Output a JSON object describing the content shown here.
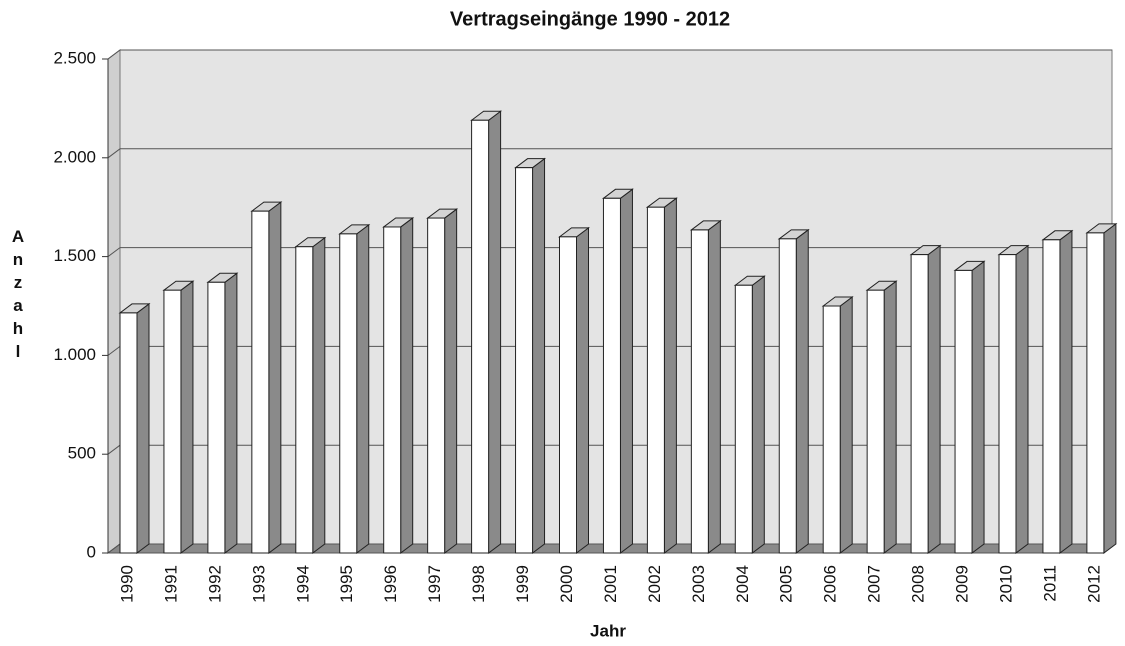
{
  "chart_data": {
    "type": "bar",
    "title": "Vertragseingänge  1990 - 2012",
    "x_label": "Jahr",
    "y_label": "Anzahl",
    "categories": [
      "1990",
      "1991",
      "1992",
      "1993",
      "1994",
      "1995",
      "1996",
      "1997",
      "1998",
      "1999",
      "2000",
      "2001",
      "2002",
      "2003",
      "2004",
      "2005",
      "2006",
      "2007",
      "2008",
      "2009",
      "2010",
      "2011",
      "2012"
    ],
    "values": [
      1215,
      1330,
      1370,
      1730,
      1550,
      1615,
      1650,
      1695,
      2190,
      1950,
      1600,
      1795,
      1750,
      1635,
      1355,
      1590,
      1250,
      1330,
      1510,
      1430,
      1510,
      1585,
      1620
    ],
    "color": "#ffffff",
    "side_color": "#8a8a8a",
    "top_color": "#d4d4d4",
    "ylim": [
      0,
      2500
    ],
    "yticks": [
      0,
      500,
      {
        "value": 1000,
        "label": "1.000"
      },
      {
        "value": 1500,
        "label": "1.500"
      },
      {
        "value": 2000,
        "label": "2.000"
      },
      {
        "value": 2500,
        "label": "2.500"
      }
    ],
    "grid": true
  }
}
